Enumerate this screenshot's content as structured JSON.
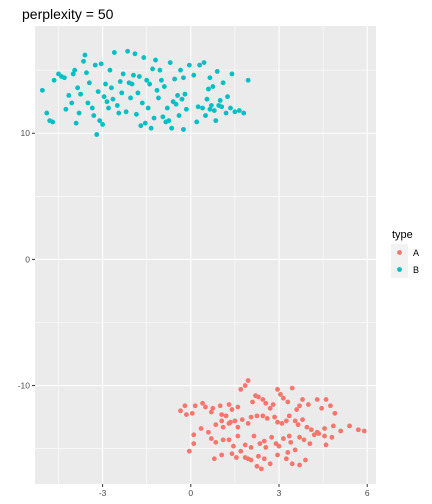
{
  "chart_data": {
    "type": "scatter",
    "title": "perplexity = 50",
    "xlabel": "",
    "ylabel": "",
    "xlim": [
      -5.3,
      6.3
    ],
    "ylim": [
      -17.8,
      18.5
    ],
    "x_ticks": [
      -3,
      0,
      3,
      6
    ],
    "x_tick_labels": [
      "-3",
      "0",
      "3",
      "6"
    ],
    "y_ticks": [
      -10,
      0,
      10
    ],
    "y_tick_labels": [
      "-10",
      "0",
      "10"
    ],
    "x_minor_ticks": [
      -4.5,
      -1.5,
      1.5,
      4.5
    ],
    "y_minor_ticks": [
      -15,
      -5,
      5,
      15
    ],
    "grid": true,
    "background_color": "#EBEBEB",
    "grid_color": "#FFFFFF",
    "legend": {
      "title": "type",
      "position": "right",
      "entries": [
        {
          "label": "A",
          "color": "#F8766D"
        },
        {
          "label": "B",
          "color": "#00BFC4"
        }
      ]
    },
    "series": [
      {
        "name": "A",
        "color": "#F8766D",
        "points": [
          [
            -0.35,
            -12.0
          ],
          [
            -0.2,
            -11.6
          ],
          [
            -0.15,
            -12.3
          ],
          [
            0.05,
            -12.2
          ],
          [
            0.15,
            -11.6
          ],
          [
            0.4,
            -11.4
          ],
          [
            0.5,
            -11.7
          ],
          [
            0.7,
            -12.1
          ],
          [
            0.75,
            -11.8
          ],
          [
            1.0,
            -11.6
          ],
          [
            1.05,
            -12.3
          ],
          [
            1.2,
            -12.4
          ],
          [
            1.3,
            -11.5
          ],
          [
            1.4,
            -11.9
          ],
          [
            1.6,
            -11.7
          ],
          [
            1.7,
            -10.3
          ],
          [
            1.85,
            -10.0
          ],
          [
            1.95,
            -9.6
          ],
          [
            2.1,
            -11.3
          ],
          [
            2.2,
            -10.8
          ],
          [
            2.3,
            -10.9
          ],
          [
            2.45,
            -11.1
          ],
          [
            2.55,
            -11.4
          ],
          [
            2.7,
            -11.8
          ],
          [
            2.8,
            -11.5
          ],
          [
            2.95,
            -10.3
          ],
          [
            3.05,
            -10.7
          ],
          [
            3.15,
            -11.0
          ],
          [
            3.3,
            -11.3
          ],
          [
            3.45,
            -10.2
          ],
          [
            3.6,
            -11.9
          ],
          [
            3.7,
            -11.6
          ],
          [
            3.8,
            -11.1
          ],
          [
            4.0,
            -11.5
          ],
          [
            4.3,
            -11.1
          ],
          [
            4.45,
            -11.8
          ],
          [
            4.6,
            -11.1
          ],
          [
            4.75,
            -11.6
          ],
          [
            4.9,
            -12.2
          ],
          [
            0.1,
            -13.9
          ],
          [
            0.35,
            -13.4
          ],
          [
            0.6,
            -13.7
          ],
          [
            0.85,
            -13.1
          ],
          [
            1.05,
            -12.8
          ],
          [
            1.1,
            -13.3
          ],
          [
            1.3,
            -13.0
          ],
          [
            1.35,
            -12.9
          ],
          [
            1.5,
            -12.8
          ],
          [
            1.6,
            -13.3
          ],
          [
            1.75,
            -12.7
          ],
          [
            1.95,
            -13.0
          ],
          [
            2.05,
            -12.5
          ],
          [
            2.25,
            -12.4
          ],
          [
            2.45,
            -12.4
          ],
          [
            2.6,
            -12.6
          ],
          [
            2.85,
            -12.5
          ],
          [
            2.95,
            -12.9
          ],
          [
            3.1,
            -13.0
          ],
          [
            3.25,
            -12.8
          ],
          [
            3.35,
            -12.4
          ],
          [
            3.55,
            -12.8
          ],
          [
            3.65,
            -13.1
          ],
          [
            3.8,
            -12.7
          ],
          [
            3.95,
            -13.3
          ],
          [
            4.1,
            -13.5
          ],
          [
            4.3,
            -13.7
          ],
          [
            4.55,
            -13.4
          ],
          [
            4.85,
            -13.2
          ],
          [
            5.1,
            -13.6
          ],
          [
            5.4,
            -13.2
          ],
          [
            5.7,
            -13.5
          ],
          [
            5.9,
            -13.6
          ],
          [
            -0.05,
            -15.2
          ],
          [
            0.1,
            -14.6
          ],
          [
            0.7,
            -14.2
          ],
          [
            0.85,
            -14.5
          ],
          [
            1.1,
            -14.3
          ],
          [
            1.3,
            -14.3
          ],
          [
            1.45,
            -14.8
          ],
          [
            1.6,
            -14.0
          ],
          [
            1.7,
            -15.2
          ],
          [
            1.85,
            -14.7
          ],
          [
            1.95,
            -15.8
          ],
          [
            2.05,
            -14.9
          ],
          [
            2.15,
            -14.0
          ],
          [
            2.3,
            -15.6
          ],
          [
            2.35,
            -14.6
          ],
          [
            2.5,
            -14.4
          ],
          [
            2.55,
            -14.9
          ],
          [
            2.75,
            -14.1
          ],
          [
            2.9,
            -14.6
          ],
          [
            3.0,
            -14.8
          ],
          [
            3.15,
            -14.2
          ],
          [
            3.3,
            -15.3
          ],
          [
            3.4,
            -14.5
          ],
          [
            3.55,
            -15.1
          ],
          [
            3.7,
            -14.1
          ],
          [
            3.85,
            -14.3
          ],
          [
            4.05,
            -14.6
          ],
          [
            4.2,
            -13.9
          ],
          [
            4.35,
            -13.8
          ],
          [
            4.55,
            -14.0
          ],
          [
            4.6,
            -14.7
          ],
          [
            4.8,
            -14.1
          ],
          [
            1.4,
            -15.4
          ],
          [
            1.55,
            -15.7
          ],
          [
            1.85,
            -15.7
          ],
          [
            2.05,
            -15.9
          ],
          [
            2.25,
            -16.4
          ],
          [
            2.4,
            -16.6
          ],
          [
            2.5,
            -15.8
          ],
          [
            2.7,
            -16.2
          ],
          [
            2.95,
            -15.5
          ],
          [
            3.25,
            -15.8
          ],
          [
            3.45,
            -16.2
          ],
          [
            3.7,
            -16.3
          ],
          [
            3.9,
            -15.9
          ],
          [
            0.8,
            -15.8
          ],
          [
            1.05,
            -15.5
          ],
          [
            3.35,
            -14.0
          ]
        ]
      },
      {
        "name": "B",
        "color": "#00BFC4",
        "points": [
          [
            -5.05,
            13.4
          ],
          [
            -4.9,
            11.6
          ],
          [
            -4.8,
            11.0
          ],
          [
            -4.7,
            10.9
          ],
          [
            -4.65,
            14.2
          ],
          [
            -4.5,
            14.7
          ],
          [
            -4.4,
            14.5
          ],
          [
            -4.3,
            14.4
          ],
          [
            -4.25,
            11.9
          ],
          [
            -4.15,
            13.0
          ],
          [
            -4.05,
            12.4
          ],
          [
            -3.95,
            15.0
          ],
          [
            -3.9,
            10.8
          ],
          [
            -3.85,
            13.6
          ],
          [
            -3.8,
            11.6
          ],
          [
            -3.75,
            13.1
          ],
          [
            -3.65,
            15.7
          ],
          [
            -3.6,
            16.2
          ],
          [
            -3.55,
            14.8
          ],
          [
            -3.5,
            12.4
          ],
          [
            -3.45,
            14.0
          ],
          [
            -3.35,
            12.0
          ],
          [
            -3.3,
            11.4
          ],
          [
            -3.25,
            15.4
          ],
          [
            -3.2,
            9.9
          ],
          [
            -3.15,
            13.3
          ],
          [
            -3.1,
            11.0
          ],
          [
            -3.05,
            15.5
          ],
          [
            -3.0,
            10.7
          ],
          [
            -2.95,
            12.9
          ],
          [
            -2.9,
            13.9
          ],
          [
            -2.85,
            12.5
          ],
          [
            -2.8,
            12.0
          ],
          [
            -2.75,
            15.0
          ],
          [
            -2.7,
            13.6
          ],
          [
            -2.65,
            12.7
          ],
          [
            -2.6,
            16.4
          ],
          [
            -2.5,
            12.2
          ],
          [
            -2.45,
            11.6
          ],
          [
            -2.4,
            14.1
          ],
          [
            -2.35,
            13.2
          ],
          [
            -2.3,
            14.7
          ],
          [
            -2.2,
            11.7
          ],
          [
            -2.15,
            16.5
          ],
          [
            -2.1,
            14.0
          ],
          [
            -2.05,
            12.8
          ],
          [
            -2.0,
            13.9
          ],
          [
            -1.95,
            14.6
          ],
          [
            -1.9,
            16.3
          ],
          [
            -1.85,
            11.5
          ],
          [
            -1.8,
            13.2
          ],
          [
            -1.75,
            14.5
          ],
          [
            -1.7,
            10.6
          ],
          [
            -1.65,
            12.4
          ],
          [
            -1.6,
            16.0
          ],
          [
            -1.55,
            10.8
          ],
          [
            -1.5,
            14.2
          ],
          [
            -1.45,
            12.0
          ],
          [
            -1.4,
            13.9
          ],
          [
            -1.35,
            10.4
          ],
          [
            -1.3,
            15.1
          ],
          [
            -1.25,
            11.2
          ],
          [
            -1.2,
            15.8
          ],
          [
            -1.15,
            13.4
          ],
          [
            -1.1,
            12.8
          ],
          [
            -1.05,
            15.0
          ],
          [
            -1.0,
            14.2
          ],
          [
            -0.95,
            11.3
          ],
          [
            -0.9,
            13.7
          ],
          [
            -0.85,
            10.9
          ],
          [
            -0.8,
            12.0
          ],
          [
            -0.75,
            11.0
          ],
          [
            -0.7,
            15.6
          ],
          [
            -0.65,
            10.4
          ],
          [
            -0.6,
            12.5
          ],
          [
            -0.55,
            14.3
          ],
          [
            -0.5,
            12.3
          ],
          [
            -0.45,
            13.0
          ],
          [
            -0.4,
            11.4
          ],
          [
            -0.35,
            15.0
          ],
          [
            -0.3,
            12.7
          ],
          [
            -0.25,
            14.4
          ],
          [
            -0.2,
            13.1
          ],
          [
            -0.15,
            11.9
          ],
          [
            -0.05,
            15.4
          ],
          [
            0.1,
            14.6
          ],
          [
            0.25,
            12.1
          ],
          [
            0.4,
            12.0
          ],
          [
            0.5,
            11.4
          ],
          [
            0.55,
            12.7
          ],
          [
            0.6,
            13.5
          ],
          [
            0.65,
            11.9
          ],
          [
            0.7,
            12.2
          ],
          [
            0.75,
            13.7
          ],
          [
            0.8,
            11.8
          ],
          [
            0.85,
            11.0
          ],
          [
            0.9,
            14.9
          ],
          [
            1.0,
            12.6
          ],
          [
            1.1,
            14.0
          ],
          [
            1.2,
            11.6
          ],
          [
            1.35,
            12.0
          ],
          [
            1.5,
            11.7
          ],
          [
            0.3,
            15.4
          ],
          [
            0.45,
            15.6
          ],
          [
            0.2,
            10.9
          ],
          [
            0.65,
            14.4
          ],
          [
            0.95,
            12.2
          ],
          [
            1.25,
            12.9
          ],
          [
            1.05,
            12.1
          ],
          [
            1.4,
            14.7
          ],
          [
            1.65,
            11.8
          ],
          [
            1.8,
            11.6
          ],
          [
            1.95,
            14.2
          ],
          [
            -4.0,
            14.7
          ],
          [
            -0.25,
            10.3
          ]
        ]
      }
    ]
  }
}
